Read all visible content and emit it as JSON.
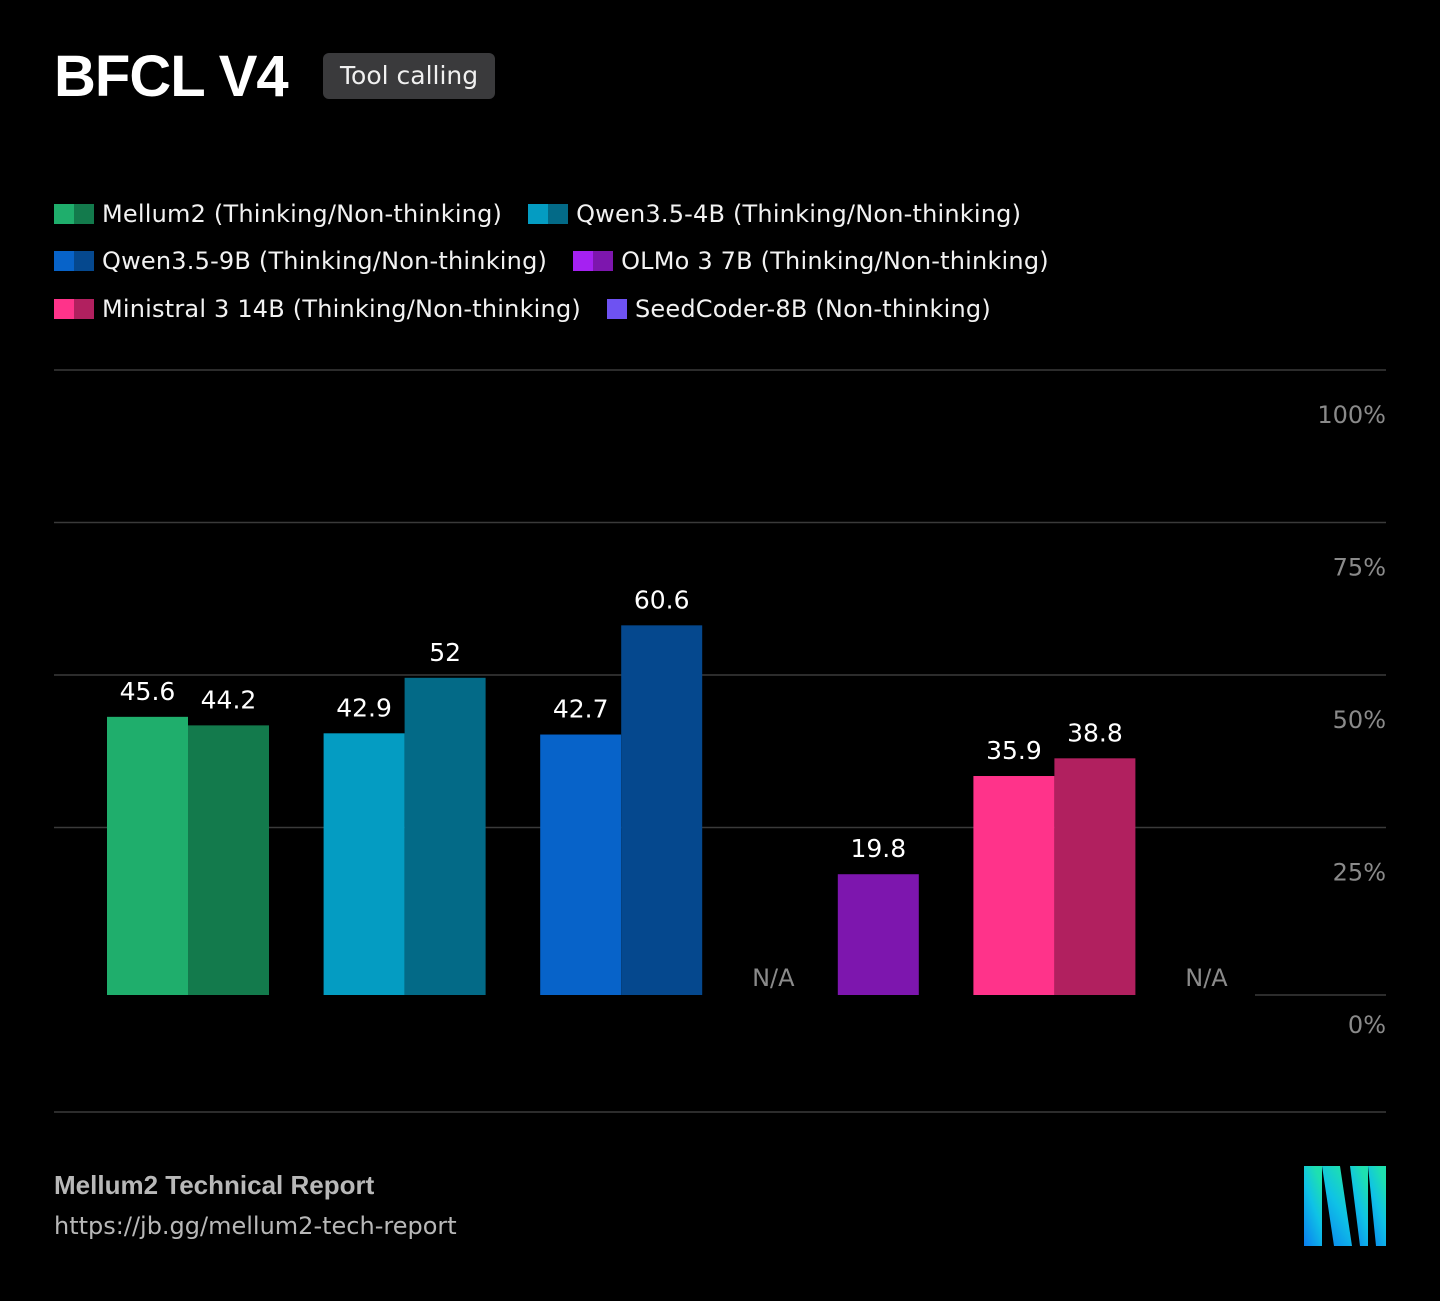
{
  "header": {
    "title": "BFCL V4",
    "badge": "Tool calling"
  },
  "legend": [
    {
      "label": "Mellum2 (Thinking/Non-thinking)",
      "colors": [
        "#1fae6c",
        "#137a4c"
      ]
    },
    {
      "label": "Qwen3.5-4B (Thinking/Non-thinking)",
      "colors": [
        "#049cc2",
        "#036a87"
      ]
    },
    {
      "label": "Qwen3.5-9B (Thinking/Non-thinking)",
      "colors": [
        "#0763c9",
        "#05488e"
      ]
    },
    {
      "label": "OLMo 3 7B (Thinking/Non-thinking)",
      "colors": [
        "#a521f2",
        "#7d16ae"
      ]
    },
    {
      "label": "Ministral 3 14B (Thinking/Non-thinking)",
      "colors": [
        "#ff338a",
        "#b1205f"
      ]
    },
    {
      "label": "SeedCoder-8B (Non-thinking)",
      "colors": [
        "#6e52f2"
      ]
    }
  ],
  "chart_data": {
    "type": "bar",
    "title": "BFCL V4",
    "ylim": [
      0,
      100
    ],
    "y_ticks": [
      "0%",
      "25%",
      "50%",
      "75%",
      "100%"
    ],
    "y_tick_values": [
      0,
      25,
      50,
      75,
      100
    ],
    "grid": true,
    "legend_position": "top",
    "na_label": "N/A",
    "groups": [
      {
        "name": "Mellum2",
        "bars": [
          {
            "variant": "Thinking",
            "value": 45.6,
            "label": "45.6",
            "color": "#1fae6c"
          },
          {
            "variant": "Non-thinking",
            "value": 44.2,
            "label": "44.2",
            "color": "#137a4c"
          }
        ]
      },
      {
        "name": "Qwen3.5-4B",
        "bars": [
          {
            "variant": "Thinking",
            "value": 42.9,
            "label": "42.9",
            "color": "#049cc2"
          },
          {
            "variant": "Non-thinking",
            "value": 52,
            "label": "52",
            "color": "#036a87"
          }
        ]
      },
      {
        "name": "Qwen3.5-9B",
        "bars": [
          {
            "variant": "Thinking",
            "value": 42.7,
            "label": "42.7",
            "color": "#0763c9"
          },
          {
            "variant": "Non-thinking",
            "value": 60.6,
            "label": "60.6",
            "color": "#05488e"
          }
        ]
      },
      {
        "name": "OLMo 3 7B",
        "bars": [
          {
            "variant": "Thinking",
            "value": null,
            "label": "N/A",
            "color": "#a521f2"
          },
          {
            "variant": "Non-thinking",
            "value": 19.8,
            "label": "19.8",
            "color": "#7d16ae"
          }
        ]
      },
      {
        "name": "Ministral 3 14B",
        "bars": [
          {
            "variant": "Thinking",
            "value": 35.9,
            "label": "35.9",
            "color": "#ff338a"
          },
          {
            "variant": "Non-thinking",
            "value": 38.8,
            "label": "38.8",
            "color": "#b1205f"
          }
        ]
      },
      {
        "name": "SeedCoder-8B",
        "bars": [
          {
            "variant": "Non-thinking",
            "value": null,
            "label": "N/A",
            "color": "#6e52f2"
          }
        ]
      }
    ]
  },
  "footer": {
    "title": "Mellum2 Technical Report",
    "url": "https://jb.gg/mellum2-tech-report"
  },
  "logo": {
    "icon": "jetbrains-stripes-logo",
    "colors": [
      "#0a7df0",
      "#0fc2e6",
      "#1ee0b0"
    ]
  }
}
